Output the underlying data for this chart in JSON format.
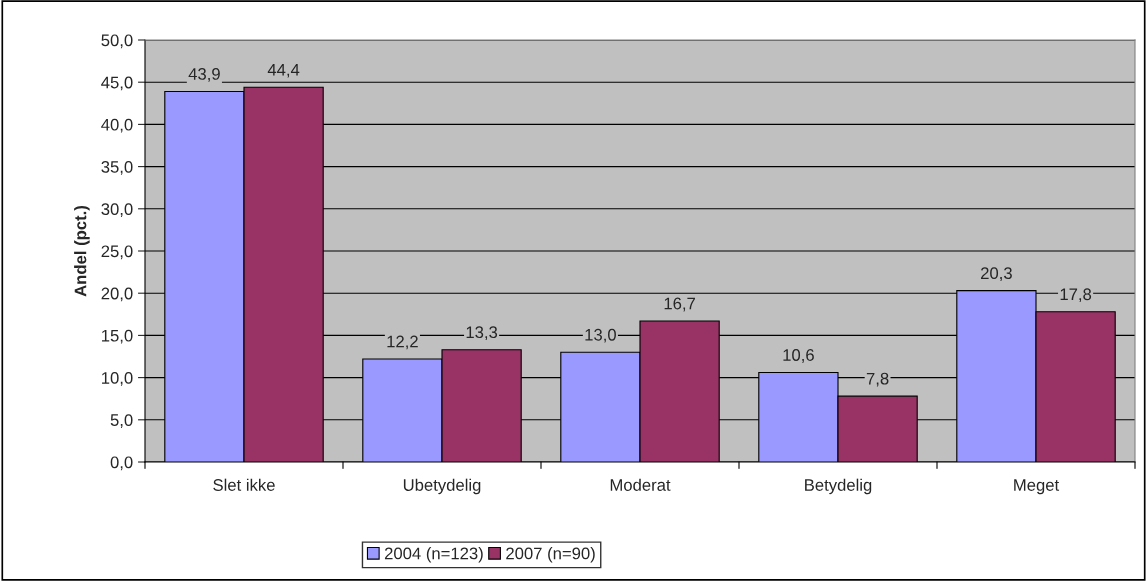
{
  "chart_data": {
    "type": "bar",
    "ylabel": "Andel (pct.)",
    "categories": [
      "Slet ikke",
      "Ubetydelig",
      "Moderat",
      "Betydelig",
      "Meget"
    ],
    "series": [
      {
        "name": "2004 (n=123)",
        "color": "#9999ff",
        "values": [
          43.9,
          12.2,
          13.0,
          10.6,
          20.3
        ],
        "value_labels": [
          "43,9",
          "12,2",
          "13,0",
          "10,6",
          "20,3"
        ]
      },
      {
        "name": "2007 (n=90)",
        "color": "#993366",
        "values": [
          44.4,
          13.3,
          16.7,
          7.8,
          17.8
        ],
        "value_labels": [
          "44,4",
          "13,3",
          "16,7",
          "7,8",
          "17,8"
        ]
      }
    ],
    "ylim": [
      0,
      50
    ],
    "yticks": [
      {
        "value": 0,
        "label": "0,0"
      },
      {
        "value": 5,
        "label": "5,0"
      },
      {
        "value": 10,
        "label": "10,0"
      },
      {
        "value": 15,
        "label": "15,0"
      },
      {
        "value": 20,
        "label": "20,0"
      },
      {
        "value": 25,
        "label": "25,0"
      },
      {
        "value": 30,
        "label": "30,0"
      },
      {
        "value": 35,
        "label": "35,0"
      },
      {
        "value": 40,
        "label": "40,0"
      },
      {
        "value": 45,
        "label": "45,0"
      },
      {
        "value": 50,
        "label": "50,0"
      }
    ],
    "grid": "y",
    "legend": "bottom"
  }
}
